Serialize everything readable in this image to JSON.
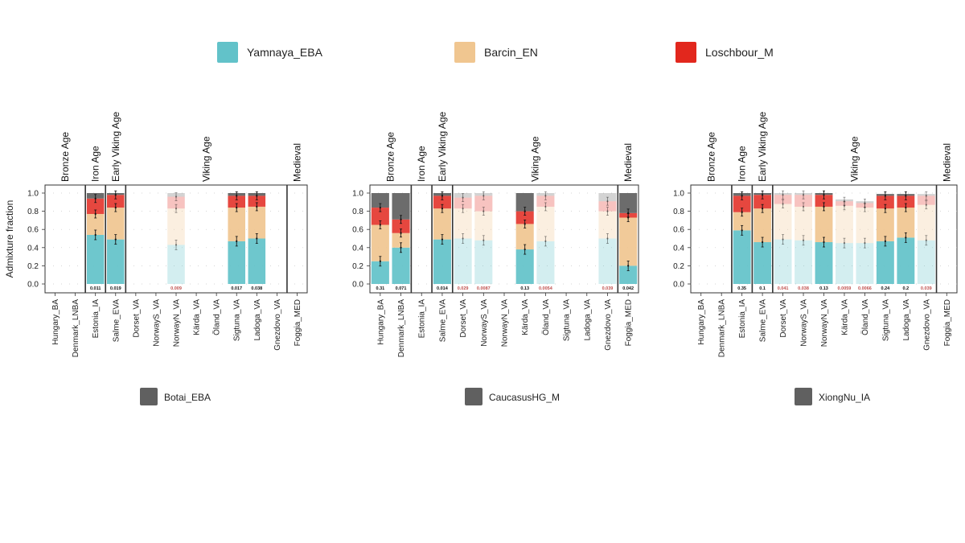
{
  "legend": {
    "top": [
      {
        "label": "Yamnaya_EBA",
        "color": "#62c2c9"
      },
      {
        "label": "Barcin_EN",
        "color": "#f0c690"
      },
      {
        "label": "Loschbour_M",
        "color": "#e2271d"
      }
    ],
    "bottom": [
      {
        "label": "Botai_EBA",
        "color": "#606060"
      },
      {
        "label": "CaucasusHG_M",
        "color": "#606060"
      },
      {
        "label": "XiongNu_IA",
        "color": "#606060"
      }
    ]
  },
  "y_axis_label": "Admixture fraction",
  "chart_data": [
    {
      "type": "bar",
      "stacked": true,
      "ylim": [
        0,
        1
      ],
      "yticks": [
        "0.0",
        "0.2",
        "0.4",
        "0.6",
        "0.8",
        "1.0"
      ],
      "ylabel": "Admixture fraction",
      "categories": [
        "Hungary_BA",
        "Denmark_LNBA",
        "Estonia_IA",
        "Salme_EVA",
        "Dorset_VA",
        "NorwayS_VA",
        "NorwayN_VA",
        "Kärda_VA",
        "Öland_VA",
        "Sigtuna_VA",
        "Ladoga_VA",
        "Gnezdovo_VA",
        "Foggia_MED"
      ],
      "periods": [
        {
          "label": "Bronze Age",
          "span": [
            0,
            1
          ]
        },
        {
          "label": "Iron Age",
          "span": [
            2,
            2
          ]
        },
        {
          "label": "Early Viking Age",
          "span": [
            3,
            3
          ]
        },
        {
          "label": "Viking Age",
          "span": [
            4,
            11
          ]
        },
        {
          "label": "Medieval",
          "span": [
            12,
            12
          ]
        }
      ],
      "series": [
        {
          "name": "Yamnaya_EBA",
          "values": [
            null,
            null,
            0.54,
            0.49,
            null,
            null,
            0.43,
            null,
            null,
            0.47,
            0.5,
            null,
            null
          ]
        },
        {
          "name": "Barcin_EN",
          "values": [
            null,
            null,
            0.23,
            0.35,
            null,
            null,
            0.4,
            null,
            null,
            0.37,
            0.35,
            null,
            null
          ]
        },
        {
          "name": "Loschbour_M",
          "values": [
            null,
            null,
            0.17,
            0.14,
            null,
            null,
            0.13,
            null,
            null,
            0.13,
            0.12,
            null,
            null
          ]
        },
        {
          "name": "Botai_EBA",
          "values": [
            null,
            null,
            0.06,
            0.02,
            null,
            null,
            0.04,
            null,
            null,
            0.03,
            0.03,
            null,
            null
          ]
        }
      ],
      "faded": [
        false,
        false,
        false,
        false,
        false,
        false,
        true,
        false,
        false,
        false,
        false,
        false,
        false
      ],
      "p_values": [
        "",
        "",
        "0.011",
        "0.019",
        "",
        "",
        "0.009",
        "",
        "",
        "0.017",
        "0.038",
        "",
        ""
      ]
    },
    {
      "type": "bar",
      "stacked": true,
      "ylim": [
        0,
        1
      ],
      "yticks": [
        "0.0",
        "0.2",
        "0.4",
        "0.6",
        "0.8",
        "1.0"
      ],
      "categories": [
        "Hungary_BA",
        "Denmark_LNBA",
        "Estonia_IA",
        "Salme_EVA",
        "Dorset_VA",
        "NorwayS_VA",
        "NorwayN_VA",
        "Kärda_VA",
        "Öland_VA",
        "Sigtuna_VA",
        "Ladoga_VA",
        "Gnezdovo_VA",
        "Foggia_MED"
      ],
      "periods": [
        {
          "label": "Bronze Age",
          "span": [
            0,
            1
          ]
        },
        {
          "label": "Iron Age",
          "span": [
            2,
            2
          ]
        },
        {
          "label": "Early Viking Age",
          "span": [
            3,
            3
          ]
        },
        {
          "label": "Viking Age",
          "span": [
            4,
            11
          ]
        },
        {
          "label": "Medieval",
          "span": [
            12,
            12
          ]
        }
      ],
      "series": [
        {
          "name": "Yamnaya_EBA",
          "values": [
            0.25,
            0.4,
            null,
            0.49,
            0.5,
            0.48,
            null,
            0.38,
            0.47,
            null,
            null,
            0.5,
            0.2
          ]
        },
        {
          "name": "Barcin_EN",
          "values": [
            0.4,
            0.16,
            null,
            0.34,
            0.33,
            0.32,
            null,
            0.28,
            0.38,
            null,
            null,
            0.3,
            0.53
          ]
        },
        {
          "name": "Loschbour_M",
          "values": [
            0.19,
            0.15,
            null,
            0.14,
            0.12,
            0.17,
            null,
            0.14,
            0.12,
            null,
            null,
            0.11,
            0.05
          ]
        },
        {
          "name": "CaucasusHG_M",
          "values": [
            0.16,
            0.29,
            null,
            0.03,
            0.05,
            0.03,
            null,
            0.2,
            0.03,
            null,
            null,
            0.09,
            0.22
          ]
        }
      ],
      "faded": [
        false,
        false,
        false,
        false,
        true,
        true,
        false,
        false,
        true,
        false,
        false,
        true,
        false
      ],
      "p_values": [
        "0.31",
        "0.071",
        "",
        "0.014",
        "0.029",
        "0.0087",
        "",
        "0.13",
        "0.0054",
        "",
        "",
        "0.039",
        "0.042"
      ]
    },
    {
      "type": "bar",
      "stacked": true,
      "ylim": [
        0,
        1
      ],
      "yticks": [
        "0.0",
        "0.2",
        "0.4",
        "0.6",
        "0.8",
        "1.0"
      ],
      "categories": [
        "Hungary_BA",
        "Denmark_LNBA",
        "Estonia_IA",
        "Salme_EVA",
        "Dorset_VA",
        "NorwayS_VA",
        "NorwayN_VA",
        "Kärda_VA",
        "Öland_VA",
        "Sigtuna_VA",
        "Ladoga_VA",
        "Gnezdovo_VA",
        "Foggia_MED"
      ],
      "periods": [
        {
          "label": "Bronze Age",
          "span": [
            0,
            1
          ]
        },
        {
          "label": "Iron Age",
          "span": [
            2,
            2
          ]
        },
        {
          "label": "Early Viking Age",
          "span": [
            3,
            3
          ]
        },
        {
          "label": "Viking Age",
          "span": [
            4,
            11
          ]
        },
        {
          "label": "Medieval",
          "span": [
            12,
            12
          ]
        }
      ],
      "series": [
        {
          "name": "Yamnaya_EBA",
          "values": [
            null,
            null,
            0.59,
            0.46,
            0.49,
            0.48,
            0.46,
            0.45,
            0.45,
            0.47,
            0.51,
            0.48,
            null
          ]
        },
        {
          "name": "Barcin_EN",
          "values": [
            null,
            null,
            0.2,
            0.37,
            0.39,
            0.37,
            0.39,
            0.41,
            0.39,
            0.36,
            0.33,
            0.39,
            null
          ]
        },
        {
          "name": "Loschbour_M",
          "values": [
            null,
            null,
            0.18,
            0.15,
            0.1,
            0.13,
            0.13,
            0.05,
            0.05,
            0.14,
            0.13,
            0.1,
            null
          ]
        },
        {
          "name": "XiongNu_IA",
          "values": [
            null,
            null,
            0.03,
            0.02,
            0.02,
            0.02,
            0.02,
            0.02,
            0.02,
            0.02,
            0.02,
            0.02,
            null
          ]
        }
      ],
      "faded": [
        false,
        false,
        false,
        false,
        true,
        true,
        false,
        true,
        true,
        false,
        false,
        true,
        false
      ],
      "p_values": [
        "",
        "",
        "0.35",
        "0.1",
        "0.041",
        "0.038",
        "0.13",
        "0.0059",
        "0.0066",
        "0.24",
        "0.2",
        "0.039",
        ""
      ]
    }
  ]
}
